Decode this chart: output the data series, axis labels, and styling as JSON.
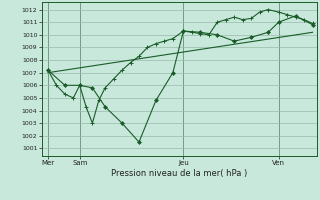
{
  "bg_color": "#c8e8dc",
  "grid_color": "#99bbaa",
  "line_color": "#1a5c28",
  "title": "Pression niveau de la mer( hPa )",
  "ylim": [
    1000.4,
    1012.6
  ],
  "yticks": [
    1001,
    1002,
    1003,
    1004,
    1005,
    1006,
    1007,
    1008,
    1009,
    1010,
    1011,
    1012
  ],
  "xlim": [
    0,
    130
  ],
  "xtick_positions": [
    3,
    18,
    67,
    112
  ],
  "xtick_labels": [
    "Mer",
    "Sam",
    "Jeu",
    "Ven"
  ],
  "vline_positions": [
    3,
    18,
    67,
    112
  ],
  "series1_x": [
    3,
    7,
    11,
    15,
    18,
    21,
    24,
    27,
    30,
    34,
    38,
    42,
    46,
    50,
    54,
    58,
    62,
    67,
    71,
    75,
    79,
    83,
    87,
    91,
    95,
    99,
    103,
    107,
    112,
    116,
    120,
    124,
    128
  ],
  "series1_y": [
    1007.2,
    1006.0,
    1005.3,
    1005.0,
    1006.0,
    1004.3,
    1003.0,
    1004.8,
    1005.8,
    1006.5,
    1007.2,
    1007.8,
    1008.3,
    1009.0,
    1009.3,
    1009.5,
    1009.7,
    1010.3,
    1010.2,
    1010.1,
    1010.0,
    1011.0,
    1011.2,
    1011.4,
    1011.2,
    1011.3,
    1011.8,
    1012.0,
    1011.8,
    1011.6,
    1011.4,
    1011.2,
    1010.9
  ],
  "series2_x": [
    3,
    11,
    18,
    24,
    30,
    38,
    46,
    54,
    62,
    67,
    75,
    83,
    91,
    99,
    107,
    112,
    120,
    128
  ],
  "series2_y": [
    1007.2,
    1006.0,
    1006.0,
    1005.8,
    1004.3,
    1003.0,
    1001.5,
    1004.8,
    1007.0,
    1010.3,
    1010.2,
    1010.0,
    1009.5,
    1009.8,
    1010.2,
    1011.0,
    1011.5,
    1010.8
  ],
  "series3_x": [
    3,
    128
  ],
  "series3_y": [
    1007.0,
    1010.2
  ]
}
